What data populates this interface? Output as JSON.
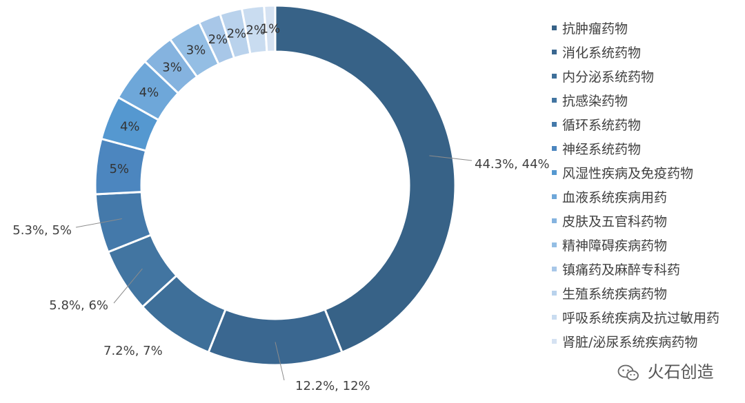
{
  "chart_data": {
    "type": "pie",
    "donut": true,
    "categories": [
      "抗肿瘤药物",
      "消化系统药物",
      "内分泌系统药物",
      "抗感染药物",
      "循环系统药物",
      "神经系统药物",
      "风湿性疾病及免疫药物",
      "血液系统疾病用药",
      "皮肤及五官科药物",
      "精神障碍疾病药物",
      "镇痛药及麻醉专科药",
      "生殖系统疾病药物",
      "呼吸系统疾病及抗过敏用药",
      "肾脏/泌尿系统疾病药物"
    ],
    "values": [
      44.3,
      12.2,
      7.2,
      5.8,
      5.3,
      5,
      4,
      4,
      3,
      3,
      2,
      2,
      2,
      1
    ],
    "data_labels": [
      "44.3%, 44%",
      "12.2%, 12%",
      "7.2%, 7%",
      "5.8%, 6%",
      "5.3%, 5%",
      "5%",
      "4%",
      "4%",
      "3%",
      "3%",
      "2%",
      "2%",
      "2%",
      "1%"
    ],
    "colors": [
      "#376287",
      "#3A6790",
      "#3E6F99",
      "#4275A1",
      "#4479AA",
      "#4C86BF",
      "#5598D0",
      "#6EA7D9",
      "#85B3DF",
      "#94BEE4",
      "#A8C7E8",
      "#B9D2EC",
      "#C9DCF0",
      "#D5E2F2"
    ],
    "legend_position": "right"
  },
  "watermark": {
    "text": "火石创造",
    "icon": "wechat-icon"
  }
}
